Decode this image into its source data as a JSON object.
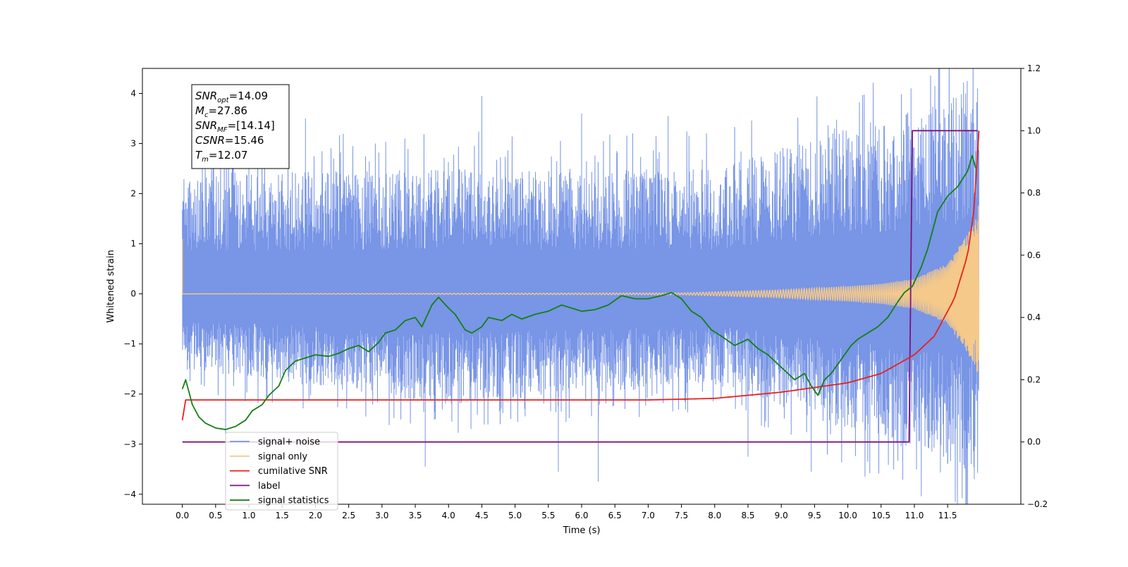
{
  "chart_data": {
    "type": "line",
    "xlabel": "Time (s)",
    "ylabel_left": "Whitened strain",
    "ylabel_right": "",
    "xlim": [
      -0.6,
      12.6
    ],
    "ylim_left": [
      -4.2,
      4.5
    ],
    "ylim_right": [
      -0.2,
      1.2
    ],
    "x_ticks": [
      0.0,
      0.5,
      1.0,
      1.5,
      2.0,
      2.5,
      3.0,
      3.5,
      4.0,
      4.5,
      5.0,
      5.5,
      6.0,
      6.5,
      7.0,
      7.5,
      8.0,
      8.5,
      9.0,
      9.5,
      10.0,
      10.5,
      11.0,
      11.5
    ],
    "x_tick_labels": [
      "0.0",
      "0.5",
      "1.0",
      "1.5",
      "2.0",
      "2.5",
      "3.0",
      "3.5",
      "4.0",
      "4.5",
      "5.0",
      "5.5",
      "6.0",
      "6.5",
      "7.0",
      "7.5",
      "8.0",
      "8.5",
      "9.0",
      "9.5",
      "10.0",
      "10.5",
      "11.0",
      "11.5"
    ],
    "y_left_ticks": [
      -4,
      -3,
      -2,
      -1,
      0,
      1,
      2,
      3,
      4
    ],
    "y_left_tick_labels": [
      "−4",
      "−3",
      "−2",
      "−1",
      "0",
      "1",
      "2",
      "3",
      "4"
    ],
    "y_right_ticks": [
      -0.2,
      0.0,
      0.2,
      0.4,
      0.6,
      0.8,
      1.0,
      1.2
    ],
    "y_right_tick_labels": [
      "−0.2",
      "0.0",
      "0.2",
      "0.4",
      "0.6",
      "0.8",
      "1.0",
      "1.2"
    ],
    "grid": false,
    "legend_position": "lower-left",
    "annotation": [
      {
        "base": "SNR",
        "sub": "opt",
        "value": "=14.09"
      },
      {
        "base": "M",
        "sub": "c",
        "value": "=27.86"
      },
      {
        "base": "SNR",
        "sub": "MF",
        "value": "=[14.14]"
      },
      {
        "base": "CSNR",
        "sub": "",
        "value": "=15.46"
      },
      {
        "base": "T",
        "sub": "m",
        "value": "=12.07"
      }
    ],
    "series": [
      {
        "name": "signal+ noise",
        "color": "#7895e6",
        "axis": "left",
        "kind": "noise",
        "x_range": [
          0.0,
          11.97
        ],
        "band_lower": [
          -1.5,
          -2.2,
          -1.8,
          -3.6
        ],
        "band_upper": [
          2.4,
          2.5,
          2.5,
          4.1
        ],
        "peaks": [
          {
            "x": 0.3,
            "y": 3.0
          },
          {
            "x": 1.0,
            "y": 3.0
          },
          {
            "x": 1.85,
            "y": 3.5
          },
          {
            "x": 2.9,
            "y": 3.0
          },
          {
            "x": 4.5,
            "y": 3.95
          },
          {
            "x": 6.0,
            "y": 3.6
          },
          {
            "x": 7.3,
            "y": 3.55
          },
          {
            "x": 8.3,
            "y": 3.3
          },
          {
            "x": 9.8,
            "y": 3.3
          },
          {
            "x": 10.95,
            "y": 4.1
          },
          {
            "x": 11.25,
            "y": 3.6
          },
          {
            "x": 11.95,
            "y": 4.1
          }
        ],
        "troughs": [
          {
            "x": 0.65,
            "y": -3.35
          },
          {
            "x": 3.65,
            "y": -3.45
          },
          {
            "x": 5.65,
            "y": -3.55
          },
          {
            "x": 6.25,
            "y": -3.75
          },
          {
            "x": 8.5,
            "y": -3.25
          },
          {
            "x": 9.45,
            "y": -3.55
          },
          {
            "x": 10.3,
            "y": -3.35
          },
          {
            "x": 11.5,
            "y": -3.4
          },
          {
            "x": 11.9,
            "y": -3.7
          }
        ]
      },
      {
        "name": "signal only",
        "color": "#f5c98a",
        "axis": "left",
        "kind": "chirp",
        "x": [
          0.0,
          7.5,
          8.0,
          9.0,
          10.0,
          10.5,
          11.0,
          11.5,
          11.9,
          11.97
        ],
        "amplitude": [
          0.0,
          0.02,
          0.04,
          0.08,
          0.15,
          0.2,
          0.3,
          0.6,
          1.4,
          1.8
        ]
      },
      {
        "name": "cumilative SNR",
        "color": "#e8201c",
        "axis": "right",
        "x": [
          0.0,
          0.01,
          7.0,
          8.0,
          9.0,
          10.0,
          10.5,
          11.0,
          11.3,
          11.6,
          11.8,
          11.9,
          11.97
        ],
        "values": [
          0.07,
          0.135,
          0.135,
          0.14,
          0.16,
          0.19,
          0.22,
          0.28,
          0.34,
          0.46,
          0.6,
          0.75,
          1.0
        ]
      },
      {
        "name": "label",
        "color": "#7f127f",
        "axis": "right",
        "x": [
          0.0,
          10.92,
          10.97,
          11.95
        ],
        "values": [
          0.0,
          0.0,
          1.0,
          1.0
        ]
      },
      {
        "name": "signal statistics",
        "color": "#137f13",
        "axis": "right",
        "x": [
          0.0,
          0.05,
          0.15,
          0.25,
          0.35,
          0.5,
          0.65,
          0.8,
          0.95,
          1.05,
          1.2,
          1.3,
          1.45,
          1.55,
          1.7,
          1.85,
          2.0,
          2.2,
          2.35,
          2.5,
          2.65,
          2.8,
          2.95,
          3.05,
          3.2,
          3.35,
          3.5,
          3.6,
          3.75,
          3.85,
          4.0,
          4.1,
          4.25,
          4.35,
          4.5,
          4.6,
          4.8,
          4.95,
          5.1,
          5.3,
          5.5,
          5.7,
          5.85,
          6.0,
          6.2,
          6.4,
          6.6,
          6.8,
          7.0,
          7.2,
          7.35,
          7.5,
          7.65,
          7.8,
          7.95,
          8.1,
          8.3,
          8.5,
          8.65,
          8.8,
          8.95,
          9.1,
          9.2,
          9.35,
          9.45,
          9.55,
          9.65,
          9.75,
          9.85,
          9.95,
          10.05,
          10.15,
          10.3,
          10.45,
          10.6,
          10.75,
          10.85,
          10.97,
          11.1,
          11.2,
          11.35,
          11.5,
          11.65,
          11.8,
          11.87,
          11.92
        ],
        "values": [
          0.17,
          0.2,
          0.12,
          0.08,
          0.06,
          0.045,
          0.04,
          0.05,
          0.07,
          0.1,
          0.12,
          0.15,
          0.18,
          0.23,
          0.26,
          0.27,
          0.28,
          0.275,
          0.285,
          0.3,
          0.31,
          0.29,
          0.32,
          0.35,
          0.36,
          0.39,
          0.4,
          0.37,
          0.44,
          0.465,
          0.43,
          0.41,
          0.36,
          0.35,
          0.37,
          0.4,
          0.39,
          0.41,
          0.395,
          0.41,
          0.42,
          0.44,
          0.43,
          0.42,
          0.425,
          0.44,
          0.47,
          0.46,
          0.46,
          0.47,
          0.48,
          0.46,
          0.42,
          0.4,
          0.36,
          0.34,
          0.31,
          0.33,
          0.3,
          0.28,
          0.25,
          0.22,
          0.2,
          0.22,
          0.18,
          0.15,
          0.2,
          0.22,
          0.25,
          0.28,
          0.31,
          0.33,
          0.35,
          0.37,
          0.4,
          0.45,
          0.48,
          0.5,
          0.56,
          0.62,
          0.74,
          0.79,
          0.82,
          0.87,
          0.92,
          0.88
        ]
      }
    ],
    "legend_entries": [
      {
        "name": "signal+ noise",
        "color": "#7895e6"
      },
      {
        "name": "signal only",
        "color": "#f5c98a"
      },
      {
        "name": "cumilative SNR",
        "color": "#e8201c"
      },
      {
        "name": "label",
        "color": "#7f127f"
      },
      {
        "name": "signal statistics",
        "color": "#137f13"
      }
    ]
  }
}
